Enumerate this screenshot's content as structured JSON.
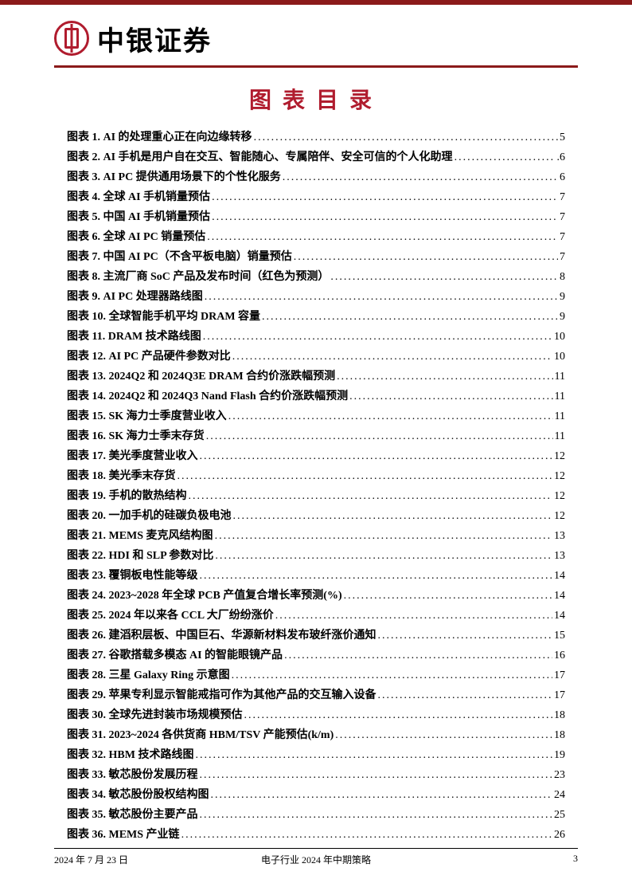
{
  "colors": {
    "brand_red": "#b01c2e",
    "bar_red": "#8b1a1a",
    "text": "#000000",
    "background": "#ffffff"
  },
  "header": {
    "brand": "中银证券"
  },
  "toc": {
    "title": "图表目录",
    "entries": [
      {
        "label": "图表 1. AI 的处理重心正在向边缘转移",
        "page": "5"
      },
      {
        "label": "图表 2. AI 手机是用户自在交互、智能随心、专属陪伴、安全可信的个人化助理",
        "page": ".6"
      },
      {
        "label": "图表 3. AI PC 提供通用场景下的个性化服务",
        "page": "6"
      },
      {
        "label": "图表 4. 全球 AI 手机销量预估",
        "page": "7"
      },
      {
        "label": "图表 5. 中国 AI 手机销量预估",
        "page": "7"
      },
      {
        "label": "图表 6. 全球 AI PC 销量预估",
        "page": "7"
      },
      {
        "label": "图表 7. 中国 AI PC（不含平板电脑）销量预估",
        "page": "7"
      },
      {
        "label": "图表 8. 主流厂商 SoC 产品及发布时间（红色为预测）",
        "page": "8"
      },
      {
        "label": "图表 9. AI PC 处理器路线图",
        "page": "9"
      },
      {
        "label": "图表 10. 全球智能手机平均 DRAM 容量",
        "page": "9"
      },
      {
        "label": "图表 11. DRAM 技术路线图",
        "page": "10"
      },
      {
        "label": "图表 12. AI PC 产品硬件参数对比",
        "page": "10"
      },
      {
        "label": "图表 13. 2024Q2 和 2024Q3E DRAM 合约价涨跌幅预测",
        "page": "11"
      },
      {
        "label": "图表 14. 2024Q2 和 2024Q3 Nand Flash 合约价涨跌幅预测",
        "page": "11"
      },
      {
        "label": "图表 15. SK 海力士季度营业收入",
        "page": "11"
      },
      {
        "label": "图表 16. SK 海力士季末存货",
        "page": "11"
      },
      {
        "label": "图表 17. 美光季度营业收入",
        "page": "12"
      },
      {
        "label": "图表 18. 美光季末存货",
        "page": "12"
      },
      {
        "label": "图表 19. 手机的散热结构",
        "page": "12"
      },
      {
        "label": "图表 20. 一加手机的硅碳负极电池",
        "page": "12"
      },
      {
        "label": "图表 21. MEMS 麦克风结构图",
        "page": "13"
      },
      {
        "label": "图表 22. HDI 和 SLP 参数对比",
        "page": "13"
      },
      {
        "label": "图表 23. 覆铜板电性能等级",
        "page": "14"
      },
      {
        "label": "图表 24. 2023~2028 年全球 PCB 产值复合增长率预测(%)",
        "page": "14"
      },
      {
        "label": "图表 25. 2024 年以来各 CCL 大厂纷纷涨价",
        "page": "14"
      },
      {
        "label": "图表 26. 建滔积层板、中国巨石、华源新材料发布玻纤涨价通知",
        "page": "15"
      },
      {
        "label": "图表 27. 谷歌搭载多模态 AI 的智能眼镜产品",
        "page": "16"
      },
      {
        "label": "图表 28. 三星 Galaxy Ring 示意图",
        "page": "17"
      },
      {
        "label": "图表 29. 苹果专利显示智能戒指可作为其他产品的交互输入设备",
        "page": "17"
      },
      {
        "label": "图表 30. 全球先进封装市场规模预估",
        "page": "18"
      },
      {
        "label": "图表 31. 2023~2024 各供货商 HBM/TSV 产能预估(k/m)",
        "page": "18"
      },
      {
        "label": "图表 32. HBM 技术路线图",
        "page": "19"
      },
      {
        "label": "图表 33. 敏芯股份发展历程",
        "page": "23"
      },
      {
        "label": "图表 34. 敏芯股份股权结构图",
        "page": "24"
      },
      {
        "label": "图表 35. 敏芯股份主要产品",
        "page": "25"
      },
      {
        "label": "图表 36. MEMS 产业链",
        "page": "26"
      }
    ]
  },
  "footer": {
    "date": "2024 年 7 月 23 日",
    "center": "电子行业 2024 年中期策略",
    "page": "3"
  }
}
